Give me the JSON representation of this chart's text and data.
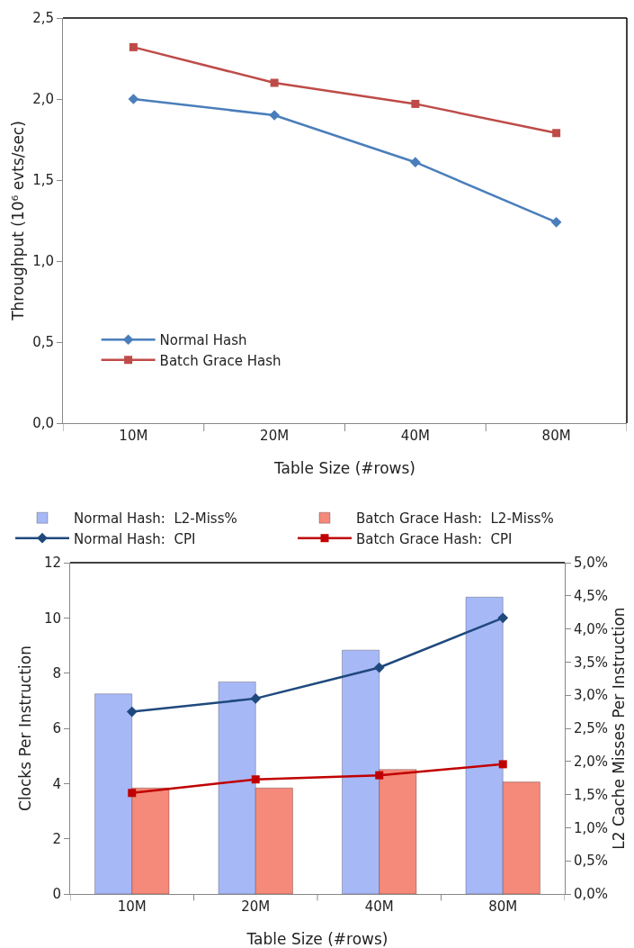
{
  "chart_data": [
    {
      "type": "line",
      "xlabel": "Table Size (#rows)",
      "ylabel": "Throughput (10⁶ evts/sec)",
      "categories": [
        "10M",
        "20M",
        "40M",
        "80M"
      ],
      "series": [
        {
          "name": "Normal Hash",
          "color": "#4a7ebb",
          "marker": "diamond",
          "values": [
            2.0,
            1.9,
            1.61,
            1.24
          ]
        },
        {
          "name": "Batch Grace Hash",
          "color": "#be4b48",
          "marker": "square",
          "values": [
            2.32,
            2.1,
            1.97,
            1.79
          ]
        }
      ],
      "ylim": [
        0,
        2.5
      ],
      "yticks": [
        {
          "value": 0,
          "label": "0,0"
        },
        {
          "value": 0.5,
          "label": "0,5"
        },
        {
          "value": 1,
          "label": "1,0"
        },
        {
          "value": 1.5,
          "label": "1,5"
        },
        {
          "value": 2,
          "label": "2,0"
        },
        {
          "value": 2.5,
          "label": "2,5"
        }
      ],
      "grid": false,
      "legend": "bottom left",
      "line_style": "solid"
    },
    {
      "type": "bar",
      "xlabel": "Table Size (#rows)",
      "ylabel": "Clocks Per Instruction",
      "y2label": "L2 Cache Misses Per Instruction",
      "categories": [
        "10M",
        "20M",
        "40M",
        "80M"
      ],
      "series": [
        {
          "name": "Normal Hash:  L2-Miss%",
          "type": "bar",
          "axis": "y2",
          "color": "#a7b8f7",
          "values": [
            3.02,
            3.2,
            3.68,
            4.48
          ]
        },
        {
          "name": "Batch Grace Hash:  L2-Miss%",
          "type": "bar",
          "axis": "y2",
          "color": "#f5897a",
          "values": [
            1.6,
            1.6,
            1.88,
            1.69
          ]
        },
        {
          "name": "Normal Hash:  CPI",
          "type": "line",
          "axis": "y",
          "color": "#1f497d",
          "marker": "diamond",
          "values": [
            6.6,
            7.08,
            8.2,
            10.0
          ]
        },
        {
          "name": "Batch Grace Hash:  CPI",
          "type": "line",
          "axis": "y",
          "color": "#c00000",
          "marker": "square",
          "values": [
            3.66,
            4.15,
            4.3,
            4.7
          ]
        }
      ],
      "ylim": [
        0,
        12
      ],
      "yticks": [
        0,
        2,
        4,
        6,
        8,
        10,
        12
      ],
      "y2lim": [
        0,
        5
      ],
      "y2ticks": [
        {
          "value": 0,
          "label": "0,0%"
        },
        {
          "value": 0.5,
          "label": "0,5%"
        },
        {
          "value": 1,
          "label": "1,0%"
        },
        {
          "value": 1.5,
          "label": "1,5%"
        },
        {
          "value": 2,
          "label": "2,0%"
        },
        {
          "value": 2.5,
          "label": "2,5%"
        },
        {
          "value": 3,
          "label": "3,0%"
        },
        {
          "value": 3.5,
          "label": "3,5%"
        },
        {
          "value": 4,
          "label": "4,0%"
        },
        {
          "value": 4.5,
          "label": "4,5%"
        },
        {
          "value": 5,
          "label": "5,0%"
        }
      ],
      "grid": false,
      "legend": "top",
      "line_style": "solid"
    }
  ]
}
